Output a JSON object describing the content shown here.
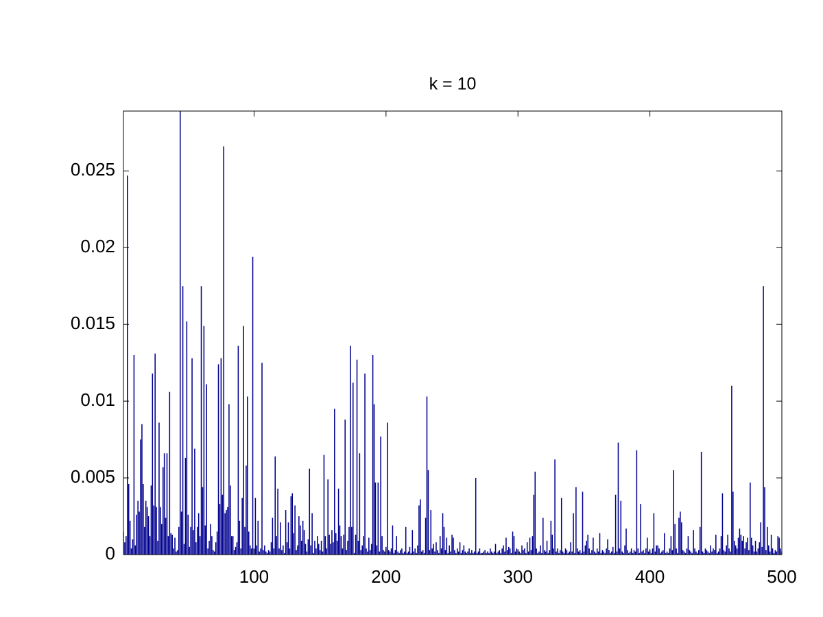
{
  "chart_data": {
    "type": "bar",
    "title": "k = 10",
    "color": "#00008f",
    "x": [
      1,
      2,
      3,
      4,
      5,
      6,
      7,
      8,
      9,
      10,
      11,
      12,
      13,
      14,
      15,
      16,
      17,
      18,
      19,
      20,
      21,
      22,
      23,
      24,
      25,
      26,
      27,
      28,
      29,
      30,
      31,
      32,
      33,
      34,
      35,
      36,
      37,
      38,
      39,
      40,
      41,
      42,
      43,
      44,
      45,
      46,
      47,
      48,
      49,
      50,
      51,
      52,
      53,
      54,
      55,
      56,
      57,
      58,
      59,
      60,
      61,
      62,
      63,
      64,
      65,
      66,
      67,
      68,
      69,
      70,
      71,
      72,
      73,
      74,
      75,
      76,
      77,
      78,
      79,
      80,
      81,
      82,
      83,
      84,
      85,
      86,
      87,
      88,
      89,
      90,
      91,
      92,
      93,
      94,
      95,
      96,
      97,
      98,
      99,
      100,
      101,
      102,
      103,
      104,
      105,
      106,
      107,
      108,
      109,
      110,
      111,
      112,
      113,
      114,
      115,
      116,
      117,
      118,
      119,
      120,
      121,
      122,
      123,
      124,
      125,
      126,
      127,
      128,
      129,
      130,
      131,
      132,
      133,
      134,
      135,
      136,
      137,
      138,
      139,
      140,
      141,
      142,
      143,
      144,
      145,
      146,
      147,
      148,
      149,
      150,
      151,
      152,
      153,
      154,
      155,
      156,
      157,
      158,
      159,
      160,
      161,
      162,
      163,
      164,
      165,
      166,
      167,
      168,
      169,
      170,
      171,
      172,
      173,
      174,
      175,
      176,
      177,
      178,
      179,
      180,
      181,
      182,
      183,
      184,
      185,
      186,
      187,
      188,
      189,
      190,
      191,
      192,
      193,
      194,
      195,
      196,
      197,
      198,
      199,
      200,
      201,
      202,
      203,
      204,
      205,
      206,
      207,
      208,
      209,
      210,
      211,
      212,
      213,
      214,
      215,
      216,
      217,
      218,
      219,
      220,
      221,
      222,
      223,
      224,
      225,
      226,
      227,
      228,
      229,
      230,
      231,
      232,
      233,
      234,
      235,
      236,
      237,
      238,
      239,
      240,
      241,
      242,
      243,
      244,
      245,
      246,
      247,
      248,
      249,
      250,
      251,
      252,
      253,
      254,
      255,
      256,
      257,
      258,
      259,
      260,
      261,
      262,
      263,
      264,
      265,
      266,
      267,
      268,
      269,
      270,
      271,
      272,
      273,
      274,
      275,
      276,
      277,
      278,
      279,
      280,
      281,
      282,
      283,
      284,
      285,
      286,
      287,
      288,
      289,
      290,
      291,
      292,
      293,
      294,
      295,
      296,
      297,
      298,
      299,
      300,
      301,
      302,
      303,
      304,
      305,
      306,
      307,
      308,
      309,
      310,
      311,
      312,
      313,
      314,
      315,
      316,
      317,
      318,
      319,
      320,
      321,
      322,
      323,
      324,
      325,
      326,
      327,
      328,
      329,
      330,
      331,
      332,
      333,
      334,
      335,
      336,
      337,
      338,
      339,
      340,
      341,
      342,
      343,
      344,
      345,
      346,
      347,
      348,
      349,
      350,
      351,
      352,
      353,
      354,
      355,
      356,
      357,
      358,
      359,
      360,
      361,
      362,
      363,
      364,
      365,
      366,
      367,
      368,
      369,
      370,
      371,
      372,
      373,
      374,
      375,
      376,
      377,
      378,
      379,
      380,
      381,
      382,
      383,
      384,
      385,
      386,
      387,
      388,
      389,
      390,
      391,
      392,
      393,
      394,
      395,
      396,
      397,
      398,
      399,
      400,
      401,
      402,
      403,
      404,
      405,
      406,
      407,
      408,
      409,
      410,
      411,
      412,
      413,
      414,
      415,
      416,
      417,
      418,
      419,
      420,
      421,
      422,
      423,
      424,
      425,
      426,
      427,
      428,
      429,
      430,
      431,
      432,
      433,
      434,
      435,
      436,
      437,
      438,
      439,
      440,
      441,
      442,
      443,
      444,
      445,
      446,
      447,
      448,
      449,
      450,
      451,
      452,
      453,
      454,
      455,
      456,
      457,
      458,
      459,
      460,
      461,
      462,
      463,
      464,
      465,
      466,
      467,
      468,
      469,
      470,
      471,
      472,
      473,
      474,
      475,
      476,
      477,
      478,
      479,
      480,
      481,
      482,
      483,
      484,
      485,
      486,
      487,
      488,
      489,
      490,
      491,
      492,
      493,
      494,
      495,
      496,
      497,
      498,
      499,
      500
    ],
    "values": [
      0.0015,
      0.0008,
      0.0012,
      0.0247,
      0.0046,
      0.0022,
      0.0004,
      0.001,
      0.013,
      0.0006,
      0.0026,
      0.0035,
      0.0028,
      0.0075,
      0.0085,
      0.0046,
      0.0018,
      0.0035,
      0.0031,
      0.0025,
      0.0012,
      0.0045,
      0.0118,
      0.0032,
      0.0131,
      0.0031,
      0.0009,
      0.0086,
      0.0031,
      0.002,
      0.0057,
      0.0066,
      0.0024,
      0.0066,
      0.0012,
      0.0106,
      0.0014,
      0.0013,
      0.0004,
      0.0011,
      0.0002,
      0.0003,
      0.0018,
      0.029,
      0.0028,
      0.0175,
      0.0007,
      0.0063,
      0.0152,
      0.0026,
      0.0005,
      0.0018,
      0.0128,
      0.0016,
      0.0069,
      0.0008,
      0.0018,
      0.0027,
      0.0012,
      0.0175,
      0.0044,
      0.0149,
      0.0019,
      0.0111,
      0.0004,
      0.0009,
      0.002,
      0.0012,
      0.0003,
      0.0002,
      0.0008,
      0.0015,
      0.0124,
      0.0033,
      0.0128,
      0.0039,
      0.0266,
      0.0027,
      0.0029,
      0.0031,
      0.0098,
      0.0045,
      0.0012,
      0.0012,
      0.0003,
      0.0005,
      0.0008,
      0.0136,
      0.0022,
      0.0004,
      0.0037,
      0.0149,
      0.0018,
      0.0058,
      0.0103,
      0.0015,
      0.0006,
      0.0004,
      0.0194,
      0.0004,
      0.0037,
      0.0006,
      0.0022,
      0.0002,
      0.0004,
      0.0125,
      0.0003,
      0.0006,
      0.0002,
      0.0001,
      0.0003,
      0.0002,
      0.0008,
      0.0024,
      0.0004,
      0.0064,
      0.0012,
      0.0043,
      0.0004,
      0.0021,
      0.0003,
      0.0006,
      0.0001,
      0.0029,
      0.0008,
      0.0021,
      0.0004,
      0.0038,
      0.004,
      0.0014,
      0.0032,
      0.0003,
      0.0006,
      0.0025,
      0.0019,
      0.0009,
      0.0022,
      0.0016,
      0.0007,
      0.0002,
      0.001,
      0.0056,
      0.0006,
      0.0027,
      0.0001,
      0.0009,
      0.0004,
      0.0012,
      0.0007,
      0.0003,
      0.0009,
      0.0002,
      0.0065,
      0.0012,
      0.0004,
      0.0049,
      0.0013,
      0.0007,
      0.0016,
      0.0008,
      0.0095,
      0.0014,
      0.0009,
      0.0043,
      0.0019,
      0.0012,
      0.0004,
      0.0013,
      0.0088,
      0.0003,
      0.0009,
      0.0018,
      0.0136,
      0.0018,
      0.0112,
      0.0001,
      0.0013,
      0.0127,
      0.0009,
      0.0066,
      0.0003,
      0.0006,
      0.0012,
      0.0118,
      0.0004,
      0.0002,
      0.0011,
      0.0003,
      0.0007,
      0.013,
      0.0098,
      0.0047,
      0.0006,
      0.0047,
      0.0002,
      0.0077,
      0.0012,
      0.0003,
      0.0002,
      0.0005,
      0.0086,
      0.0003,
      0.0002,
      0.0004,
      0.0019,
      0.0001,
      0.0003,
      0.0012,
      0.0002,
      0.0001,
      0.0003,
      0.0004,
      0.0001,
      0.0002,
      0.0018,
      0.0001,
      0.0002,
      0.0005,
      0.0001,
      0.0016,
      0.0002,
      0.0004,
      0.0001,
      0.0006,
      0.0032,
      0.0036,
      0.0002,
      0.0003,
      0.0001,
      0.0024,
      0.0103,
      0.0055,
      0.0003,
      0.0029,
      0.0004,
      0.0007,
      0.0002,
      0.0008,
      0.0003,
      0.0001,
      0.0012,
      0.0004,
      0.0027,
      0.0018,
      0.0003,
      0.0011,
      0.0001,
      0.0006,
      0.0002,
      0.0013,
      0.0011,
      0.0003,
      0.0001,
      0.0004,
      0.0002,
      0.0008,
      0.0001,
      0.0003,
      0.0006,
      0.0002,
      0.0001,
      0.0002,
      0.0004,
      0.0001,
      0.0003,
      0.0001,
      0.0002,
      0.005,
      0.0001,
      0.0002,
      0.0004,
      0.0001,
      0.0001,
      0.0002,
      0.0003,
      0.0001,
      0.0002,
      0.0001,
      0.0004,
      0.0002,
      0.0001,
      0.0002,
      0.0007,
      0.0001,
      0.0002,
      0.0003,
      0.0001,
      0.0004,
      0.0006,
      0.0002,
      0.0011,
      0.0003,
      0.0005,
      0.0004,
      0.0001,
      0.0015,
      0.0012,
      0.0002,
      0.0004,
      0.0003,
      0.0002,
      0.0001,
      0.0006,
      0.0003,
      0.0004,
      0.0001,
      0.0008,
      0.0002,
      0.0011,
      0.0003,
      0.0012,
      0.0039,
      0.0054,
      0.0004,
      0.0001,
      0.0002,
      0.0006,
      0.0001,
      0.0024,
      0.0003,
      0.0002,
      0.0009,
      0.0001,
      0.0003,
      0.0022,
      0.0013,
      0.0004,
      0.0062,
      0.0002,
      0.0004,
      0.0001,
      0.0003,
      0.0037,
      0.0002,
      0.0001,
      0.0004,
      0.0003,
      0.0001,
      0.0002,
      0.0008,
      0.0002,
      0.0027,
      0.0001,
      0.0044,
      0.0004,
      0.0002,
      0.0003,
      0.0001,
      0.0041,
      0.0002,
      0.0006,
      0.0009,
      0.0013,
      0.0004,
      0.0001,
      0.0003,
      0.0011,
      0.0002,
      0.0001,
      0.0004,
      0.0002,
      0.0014,
      0.0001,
      0.0003,
      0.0002,
      0.0001,
      0.0004,
      0.001,
      0.0003,
      0.0001,
      0.0002,
      0.0005,
      0.0001,
      0.0039,
      0.0002,
      0.0073,
      0.0004,
      0.0035,
      0.0002,
      0.0001,
      0.0006,
      0.0017,
      0.0003,
      0.0001,
      0.0002,
      0.0004,
      0.0001,
      0.0003,
      0.0002,
      0.0068,
      0.0004,
      0.0001,
      0.0033,
      0.0002,
      0.0003,
      0.0001,
      0.0004,
      0.0011,
      0.0002,
      0.0003,
      0.0001,
      0.0004,
      0.0027,
      0.0002,
      0.0006,
      0.0006,
      0.0004,
      0.0001,
      0.0002,
      0.0003,
      0.0014,
      0.0001,
      0.0002,
      0.0001,
      0.0004,
      0.0012,
      0.0003,
      0.0055,
      0.002,
      0.0004,
      0.0001,
      0.0024,
      0.0028,
      0.0021,
      0.0003,
      0.0002,
      0.0001,
      0.0004,
      0.0012,
      0.0003,
      0.0002,
      0.0001,
      0.0016,
      0.0004,
      0.0002,
      0.0001,
      0.0003,
      0.0018,
      0.0067,
      0.0002,
      0.0001,
      0.0004,
      0.0003,
      0.0002,
      0.0001,
      0.0006,
      0.0002,
      0.0004,
      0.0003,
      0.0013,
      0.0001,
      0.0002,
      0.0004,
      0.0012,
      0.004,
      0.0003,
      0.0002,
      0.0006,
      0.0013,
      0.0004,
      0.0002,
      0.011,
      0.0041,
      0.0009,
      0.0006,
      0.0004,
      0.0011,
      0.0017,
      0.0013,
      0.0009,
      0.0012,
      0.0004,
      0.0008,
      0.0011,
      0.0003,
      0.0047,
      0.0011,
      0.0006,
      0.0002,
      0.0009,
      0.0002,
      0.0004,
      0.0008,
      0.0021,
      0.0005,
      0.0175,
      0.0044,
      0.0003,
      0.0018,
      0.0006,
      0.0002,
      0.0013,
      0.0004,
      0.0001,
      0.0003,
      0.0002,
      0.0012,
      0.0011,
      0.0004,
      0.0002
    ],
    "xlim": [
      1,
      500
    ],
    "xticks": [
      100,
      200,
      300,
      400,
      500
    ],
    "ylim": [
      0,
      0.0289
    ],
    "yticks": [
      0,
      0.005,
      0.01,
      0.015,
      0.02,
      0.025
    ],
    "grid": false
  }
}
